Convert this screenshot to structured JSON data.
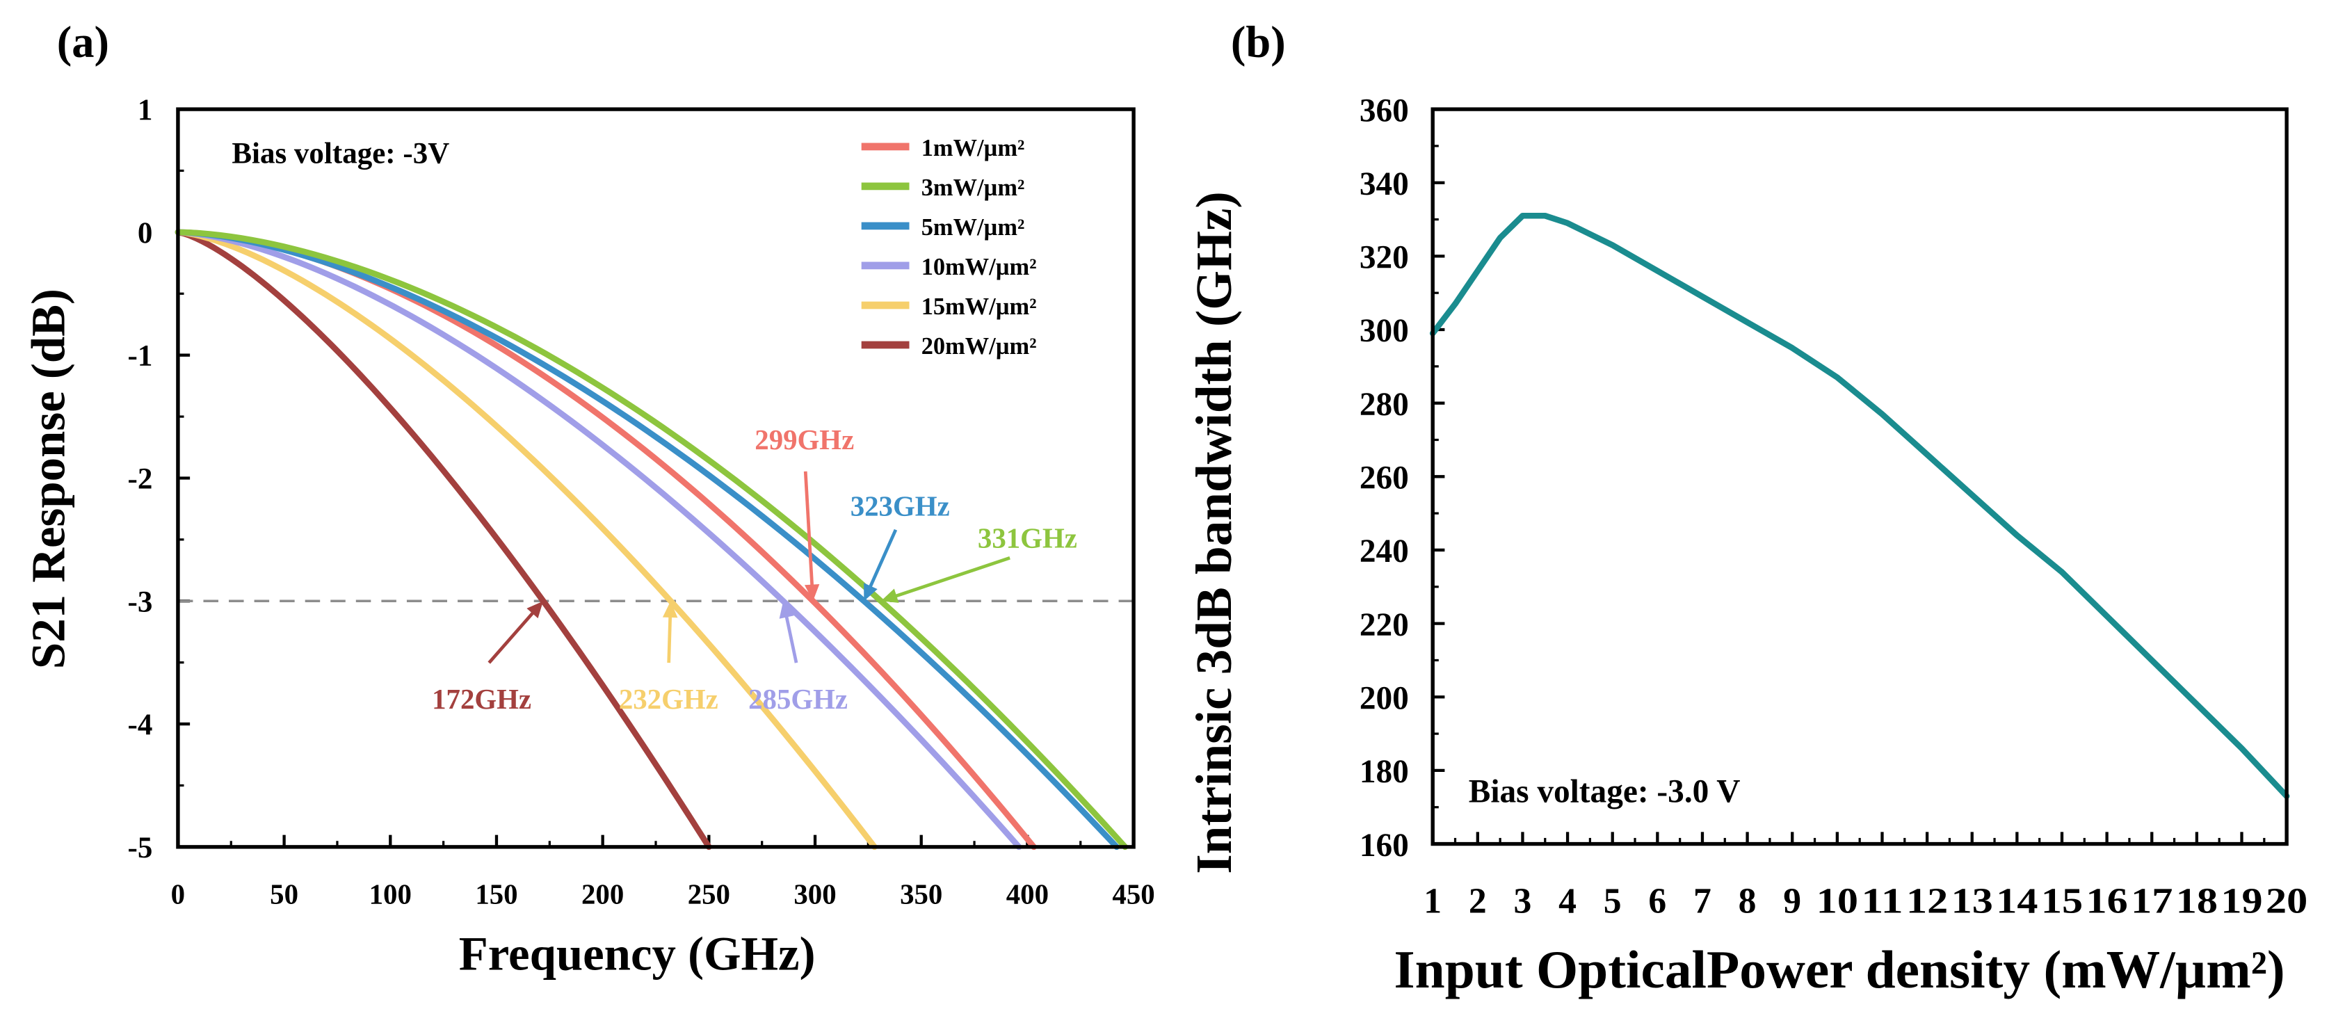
{
  "chart_data": [
    {
      "type": "line",
      "panel_label": "(a)",
      "xlabel": "Frequency (GHz)",
      "ylabel": "S21 Response (dB)",
      "xlim": [
        0,
        450
      ],
      "ylim": [
        -5,
        1
      ],
      "xticks": [
        0,
        50,
        100,
        150,
        200,
        250,
        300,
        350,
        400,
        450
      ],
      "yticks": [
        1,
        0,
        -1,
        -2,
        -3,
        -4,
        -5
      ],
      "annotation": "Bias voltage: -3V",
      "reference_line": {
        "y": -3,
        "style": "dashed",
        "color": "#8c8c8c"
      },
      "legend_position": "top-right",
      "series": [
        {
          "name": "1mW/µm²",
          "f3db": 299,
          "color": "#f0746b",
          "end_x": 403
        },
        {
          "name": "3mW/µm²",
          "f3db": 331,
          "color": "#8dc53e",
          "end_x": 446
        },
        {
          "name": "5mW/µm²",
          "f3db": 323,
          "color": "#3a8fc8",
          "end_x": 442
        },
        {
          "name": "10mW/µm²",
          "f3db": 285,
          "color": "#a09ee8",
          "end_x": 396
        },
        {
          "name": "15mW/µm²",
          "f3db": 232,
          "color": "#f6cf6c",
          "end_x": 328
        },
        {
          "name": "20mW/µm²",
          "f3db": 172,
          "color": "#a3403e",
          "end_x": 250
        }
      ],
      "labels": [
        {
          "text": "299GHz",
          "color": "#f0746b",
          "x": 295,
          "y": -1.68,
          "arrow_to": [
            299,
            -3
          ]
        },
        {
          "text": "323GHz",
          "color": "#3a8fc8",
          "x": 340,
          "y": -2.22,
          "arrow_to": [
            323,
            -3
          ]
        },
        {
          "text": "331GHz",
          "color": "#8dc53e",
          "x": 400,
          "y": -2.48,
          "arrow_to": [
            331,
            -3
          ]
        },
        {
          "text": "172GHz",
          "color": "#a3403e",
          "x": 143,
          "y": -3.79,
          "arrow_to": [
            172,
            -3
          ]
        },
        {
          "text": "232GHz",
          "color": "#f6cf6c",
          "x": 231,
          "y": -3.79,
          "arrow_to": [
            232,
            -3
          ]
        },
        {
          "text": "285GHz",
          "color": "#a09ee8",
          "x": 292,
          "y": -3.79,
          "arrow_to": [
            285,
            -3
          ]
        }
      ]
    },
    {
      "type": "line",
      "panel_label": "(b)",
      "xlabel": "Input OpticalPower density (mW/µm²)",
      "ylabel": "Intrinsic 3dB bandwidth (GHz)",
      "xlim": [
        1,
        20
      ],
      "ylim": [
        160,
        360
      ],
      "xticks": [
        1,
        2,
        3,
        4,
        5,
        6,
        7,
        8,
        9,
        10,
        11,
        12,
        13,
        14,
        15,
        16,
        17,
        18,
        19,
        20
      ],
      "yticks": [
        160,
        180,
        200,
        220,
        240,
        260,
        280,
        300,
        320,
        340,
        360
      ],
      "annotation": "Bias voltage: -3.0 V",
      "series": [
        {
          "name": "bandwidth",
          "color": "#1a8c8f",
          "x": [
            1,
            1.5,
            2,
            2.5,
            3,
            3.5,
            4,
            5,
            6,
            7,
            8,
            9,
            10,
            11,
            12,
            13,
            14,
            15,
            16,
            17,
            18,
            19,
            20
          ],
          "y": [
            299,
            307,
            316,
            325,
            331,
            331,
            329,
            323,
            316,
            309,
            302,
            295,
            287,
            277,
            266,
            255,
            244,
            234,
            222,
            210,
            198,
            186,
            173
          ]
        }
      ]
    }
  ]
}
